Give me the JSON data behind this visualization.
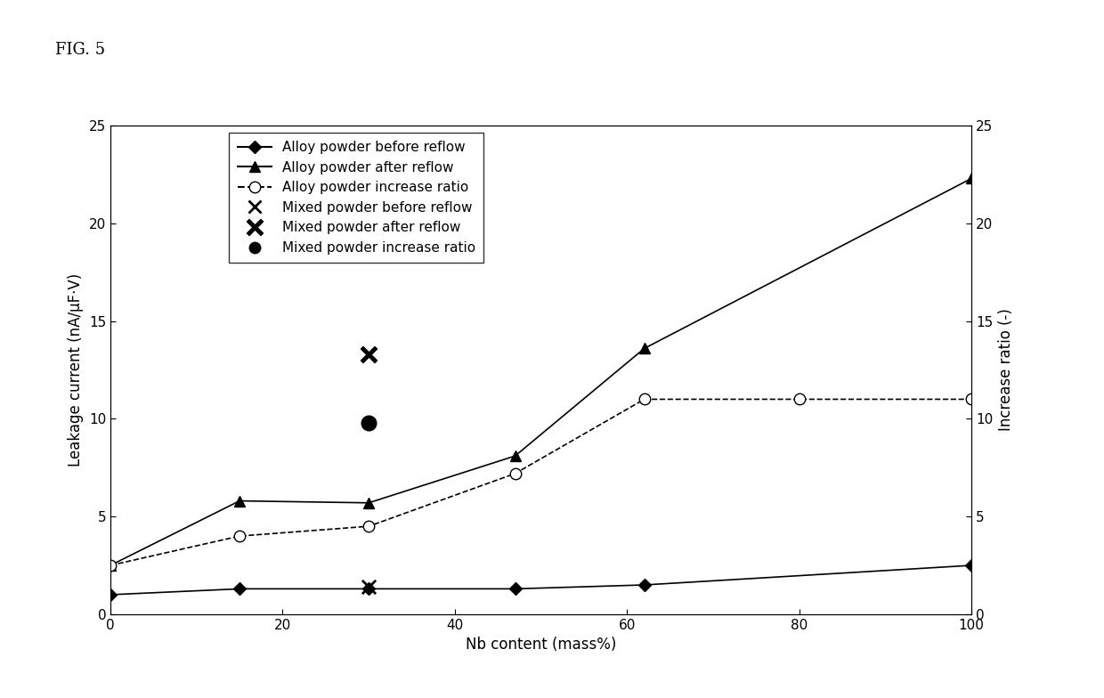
{
  "fig_label": "FIG. 5",
  "xlabel": "Nb content (mass%)",
  "ylabel_left": "Leakage current (nA/μF·V)",
  "ylabel_right": "Increase ratio (-)",
  "xlim": [
    0,
    100
  ],
  "ylim_left": [
    0,
    25
  ],
  "ylim_right": [
    0,
    25
  ],
  "xticks": [
    0,
    20,
    40,
    60,
    80,
    100
  ],
  "yticks_left": [
    0,
    5,
    10,
    15,
    20,
    25
  ],
  "yticks_right": [
    0,
    5,
    10,
    15,
    20,
    25
  ],
  "alloy_before_reflow": {
    "x": [
      0,
      15,
      30,
      47,
      62,
      100
    ],
    "y": [
      1.0,
      1.3,
      1.3,
      1.3,
      1.5,
      2.5
    ],
    "label": "Alloy powder before reflow",
    "linestyle": "-",
    "marker": "D",
    "color": "black",
    "markersize": 7,
    "markerfacecolor": "black"
  },
  "alloy_after_reflow": {
    "x": [
      0,
      15,
      30,
      47,
      62,
      100
    ],
    "y": [
      2.5,
      5.8,
      5.7,
      8.1,
      13.6,
      22.3
    ],
    "label": "Alloy powder after reflow",
    "linestyle": "-",
    "marker": "^",
    "color": "black",
    "markersize": 8,
    "markerfacecolor": "black"
  },
  "alloy_increase_ratio": {
    "x": [
      0,
      15,
      30,
      47,
      62,
      80,
      100
    ],
    "y": [
      2.5,
      4.0,
      4.5,
      7.2,
      11.0,
      11.0,
      11.0
    ],
    "label": "Alloy powder increase ratio",
    "linestyle": "--",
    "marker": "o",
    "color": "black",
    "markersize": 9,
    "markerfacecolor": "white"
  },
  "mixed_before_reflow": {
    "x": [
      30
    ],
    "y": [
      1.4
    ],
    "label": "Mixed powder before reflow",
    "color": "black",
    "markersize": 11,
    "linewidth": 2.0
  },
  "mixed_after_reflow": {
    "x": [
      30
    ],
    "y": [
      13.3
    ],
    "label": "Mixed powder after reflow",
    "color": "black",
    "markersize": 13,
    "linewidth": 2.0
  },
  "mixed_increase_ratio": {
    "x": [
      30
    ],
    "y": [
      9.8
    ],
    "label": "Mixed powder increase ratio",
    "color": "black",
    "markersize": 12
  },
  "background_color": "white",
  "font_size": 12,
  "legend_fontsize": 11
}
